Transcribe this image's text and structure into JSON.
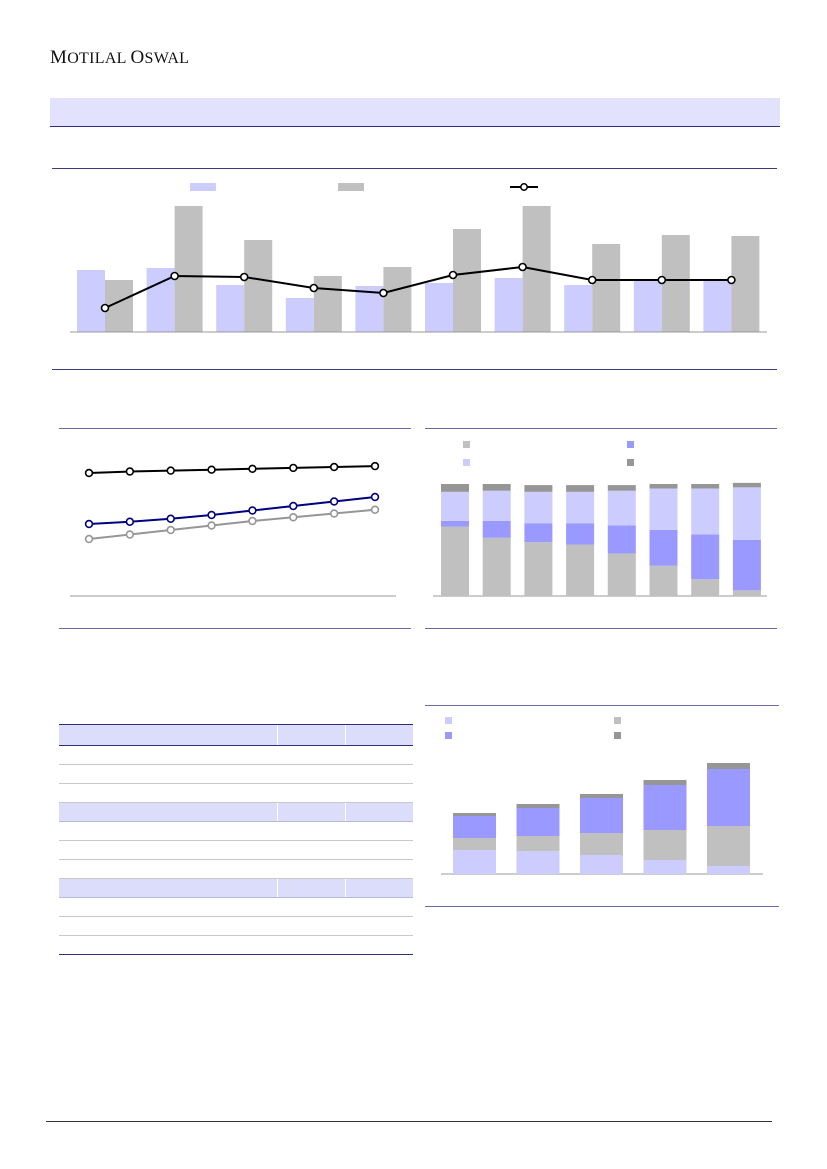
{
  "header": {
    "brand_first": "M",
    "brand_rest": "OTILAL ",
    "brand_second": "O",
    "brand_second_rest": "SWAL"
  },
  "colors": {
    "lavender": "#ccccff",
    "grey": "#c0c0c0",
    "blue": "#9999ff",
    "dark_grey": "#969696",
    "line_black": "#000000",
    "line_navy": "#000080",
    "line_grey": "#969696",
    "band": "#e2e2fc"
  },
  "charts": {
    "top_combo": {
      "type": "bar",
      "series": [
        {
          "color": "#ccccff",
          "values": [
            62,
            64,
            47,
            34,
            46,
            49,
            54,
            47,
            51,
            51
          ]
        },
        {
          "color": "#c0c0c0",
          "values": [
            52,
            126,
            92,
            56,
            65,
            103,
            126,
            88,
            97,
            96
          ]
        }
      ],
      "line": {
        "color": "#000000",
        "values": [
          24,
          56,
          55,
          44,
          39,
          57,
          65,
          52,
          52,
          52
        ]
      },
      "ylim": [
        0,
        130
      ]
    },
    "mid_left_lines": {
      "type": "line",
      "series": [
        {
          "color": "#000000",
          "values": [
            82,
            83,
            83.6,
            84.2,
            84.8,
            85.4,
            86,
            86.6
          ]
        },
        {
          "color": "#000080",
          "values": [
            48,
            49.5,
            51.5,
            54,
            57,
            60,
            63,
            66
          ]
        },
        {
          "color": "#969696",
          "values": [
            38,
            41,
            44,
            47,
            50,
            52.5,
            55,
            57.5
          ]
        }
      ],
      "ylim": [
        0,
        100
      ]
    },
    "mid_right_stacked": {
      "type": "bar",
      "stack_colors": [
        "#c0c0c0",
        "#9999ff",
        "#ccccff",
        "#969696"
      ],
      "stacks": [
        [
          62,
          5,
          26,
          7
        ],
        [
          52,
          15,
          27,
          6
        ],
        [
          48,
          17,
          28,
          6
        ],
        [
          46,
          19,
          28,
          6
        ],
        [
          38,
          25,
          31,
          5
        ],
        [
          27,
          32,
          37,
          4
        ],
        [
          15,
          40,
          41,
          4
        ],
        [
          5,
          45,
          47,
          4
        ]
      ],
      "ylim": [
        0,
        100
      ]
    },
    "bottom_right_stacked": {
      "type": "bar",
      "stack_colors": [
        "#ccccff",
        "#c0c0c0",
        "#9999ff",
        "#969696"
      ],
      "stacks": [
        [
          24,
          12,
          22,
          3
        ],
        [
          23,
          15,
          28,
          4
        ],
        [
          19,
          22,
          35,
          4
        ],
        [
          14,
          30,
          45,
          5
        ],
        [
          8,
          40,
          57,
          6
        ]
      ],
      "ylim": [
        0,
        110
      ]
    }
  }
}
